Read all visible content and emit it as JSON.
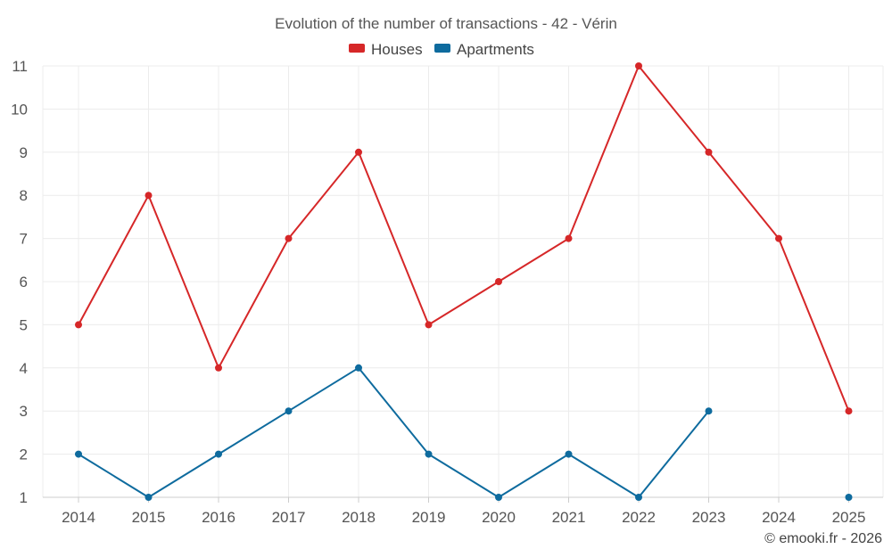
{
  "chart_data": {
    "type": "line",
    "title": "Evolution of the number of transactions - 42 - Vérin",
    "xlabel": "",
    "ylabel": "",
    "categories": [
      "2014",
      "2015",
      "2016",
      "2017",
      "2018",
      "2019",
      "2020",
      "2021",
      "2022",
      "2023",
      "2024",
      "2025"
    ],
    "ylim": [
      1,
      11
    ],
    "yticks": [
      1,
      2,
      3,
      4,
      5,
      6,
      7,
      8,
      9,
      10,
      11
    ],
    "grid": true,
    "legend_position": "top-center",
    "series": [
      {
        "name": "Houses",
        "color": "#d62728",
        "values": [
          5,
          8,
          4,
          7,
          9,
          5,
          6,
          7,
          11,
          9,
          7,
          3
        ]
      },
      {
        "name": "Apartments",
        "color": "#0e6b9e",
        "values": [
          2,
          1,
          2,
          3,
          4,
          2,
          1,
          2,
          1,
          3,
          null,
          1
        ]
      }
    ]
  },
  "credit": "© emooki.fr - 2026"
}
